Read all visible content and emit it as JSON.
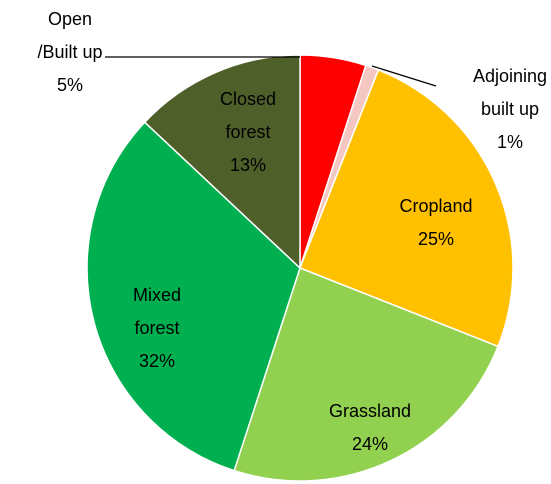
{
  "chart_data": {
    "type": "pie",
    "categories": [
      "Open /Built up",
      "Adjoining built up",
      "Cropland",
      "Grassland",
      "Mixed forest",
      "Closed forest"
    ],
    "values": [
      5,
      1,
      25,
      24,
      32,
      13
    ],
    "value_labels": [
      "5%",
      "1%",
      "25%",
      "24%",
      "32%",
      "13%"
    ],
    "colors": [
      "#ff0000",
      "#f4c7c3",
      "#ffc000",
      "#92d050",
      "#00b050",
      "#4f5f2a"
    ]
  }
}
